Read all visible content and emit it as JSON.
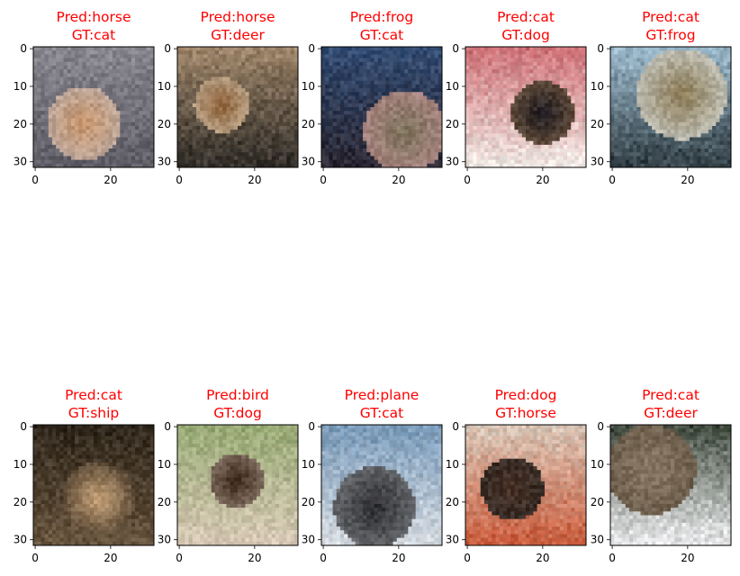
{
  "figure": {
    "title_color": "#ff0000",
    "panels": [
      {
        "title": "Pred:horse\nGT:cat",
        "pred": "horse",
        "gt": "cat",
        "palette": [
          "#8c8a93",
          "#c6946a",
          "#5c5a63",
          "#b9b4ba"
        ]
      },
      {
        "title": "Pred:horse\nGT:deer",
        "pred": "horse",
        "gt": "deer",
        "palette": [
          "#a98e70",
          "#8a5e36",
          "#2d2a26",
          "#d2c6b0"
        ]
      },
      {
        "title": "Pred:frog\nGT:cat",
        "pred": "frog",
        "gt": "cat",
        "palette": [
          "#35517a",
          "#7d725b",
          "#2a2530",
          "#c08f96"
        ]
      },
      {
        "title": "Pred:cat\nGT:dog",
        "pred": "cat",
        "gt": "dog",
        "palette": [
          "#c8646a",
          "#1e1b21",
          "#f0ebe6",
          "#8a6a4a"
        ]
      },
      {
        "title": "Pred:cat\nGT:frog",
        "pred": "cat",
        "gt": "frog",
        "palette": [
          "#a8c8dc",
          "#8b7a55",
          "#2e3a40",
          "#dfe9ef"
        ]
      },
      {
        "title": "Pred:cat\nGT:ship",
        "pred": "cat",
        "gt": "ship",
        "palette": [
          "#2a2218",
          "#c9a47a",
          "#6a5740",
          "#1a150f"
        ]
      },
      {
        "title": "Pred:bird\nGT:dog",
        "pred": "bird",
        "gt": "dog",
        "palette": [
          "#8fa56c",
          "#3a2418",
          "#d8c8b6",
          "#a89a8a"
        ]
      },
      {
        "title": "Pred:plane\nGT:cat",
        "pred": "plane",
        "gt": "cat",
        "palette": [
          "#6f93b4",
          "#2a2a2e",
          "#d9dde2",
          "#8a8e92"
        ]
      },
      {
        "title": "Pred:dog\nGT:horse",
        "pred": "dog",
        "gt": "horse",
        "palette": [
          "#d8cfc2",
          "#4a3428",
          "#c85a3a",
          "#2a2624"
        ]
      },
      {
        "title": "Pred:cat\nGT:deer",
        "pred": "cat",
        "gt": "deer",
        "palette": [
          "#2e3a2c",
          "#8a7a66",
          "#f1f1f3",
          "#5a4a3a"
        ]
      }
    ],
    "axes": {
      "xlim": [
        -0.5,
        31.5
      ],
      "ylim": [
        31.5,
        -0.5
      ],
      "xticks": [
        0,
        20
      ],
      "yticks": [
        0,
        10,
        20,
        30
      ],
      "image_size": 32
    }
  }
}
